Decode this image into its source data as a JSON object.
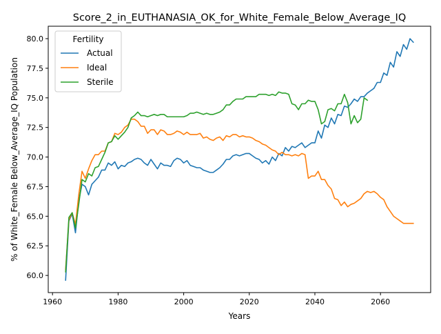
{
  "chart_data": {
    "type": "line",
    "title": "Score_2_in_EUTHANASIA_OK_for_White_Female_Below_Average_IQ",
    "xlabel": "Years",
    "ylabel": "% of White_Female Below_Average_IQ Population",
    "xlim": [
      1958.7,
      2075.3
    ],
    "ylim": [
      58.55,
      81.05
    ],
    "xticks": [
      1960,
      1980,
      2000,
      2020,
      2040,
      2060
    ],
    "xtick_labels": [
      "1960",
      "1980",
      "2000",
      "2020",
      "2040",
      "2060"
    ],
    "yticks": [
      60.0,
      62.5,
      65.0,
      67.5,
      70.0,
      72.5,
      75.0,
      77.5,
      80.0
    ],
    "ytick_labels": [
      "60.0",
      "62.5",
      "65.0",
      "67.5",
      "70.0",
      "72.5",
      "75.0",
      "77.5",
      "80.0"
    ],
    "grid": false,
    "legend": {
      "title": "Fertility",
      "location": "upper-left"
    },
    "series": [
      {
        "name": "Actual",
        "color": "#1f77b4",
        "points": [
          [
            1964,
            59.6
          ],
          [
            1965,
            64.6
          ],
          [
            1966,
            65.2
          ],
          [
            1967,
            63.6
          ],
          [
            1968,
            66.3
          ],
          [
            1969,
            67.7
          ],
          [
            1970,
            67.5
          ],
          [
            1971,
            66.8
          ],
          [
            1972,
            67.7
          ],
          [
            1973,
            68.0
          ],
          [
            1974,
            68.3
          ],
          [
            1975,
            68.9
          ],
          [
            1976,
            68.9
          ],
          [
            1977,
            69.5
          ],
          [
            1978,
            69.3
          ],
          [
            1979,
            69.6
          ],
          [
            1980,
            69.0
          ],
          [
            1981,
            69.3
          ],
          [
            1982,
            69.2
          ],
          [
            1983,
            69.5
          ],
          [
            1984,
            69.6
          ],
          [
            1985,
            69.8
          ],
          [
            1986,
            69.9
          ],
          [
            1987,
            69.8
          ],
          [
            1988,
            69.5
          ],
          [
            1989,
            69.3
          ],
          [
            1990,
            69.8
          ],
          [
            1991,
            69.4
          ],
          [
            1992,
            69.0
          ],
          [
            1993,
            69.5
          ],
          [
            1994,
            69.3
          ],
          [
            1995,
            69.3
          ],
          [
            1996,
            69.2
          ],
          [
            1997,
            69.7
          ],
          [
            1998,
            69.9
          ],
          [
            1999,
            69.8
          ],
          [
            2000,
            69.5
          ],
          [
            2001,
            69.7
          ],
          [
            2002,
            69.3
          ],
          [
            2003,
            69.2
          ],
          [
            2004,
            69.1
          ],
          [
            2005,
            69.1
          ],
          [
            2006,
            68.9
          ],
          [
            2007,
            68.8
          ],
          [
            2008,
            68.7
          ],
          [
            2009,
            68.7
          ],
          [
            2010,
            68.9
          ],
          [
            2011,
            69.1
          ],
          [
            2012,
            69.4
          ],
          [
            2013,
            69.8
          ],
          [
            2014,
            69.8
          ],
          [
            2015,
            70.1
          ],
          [
            2016,
            70.2
          ],
          [
            2017,
            70.1
          ],
          [
            2018,
            70.2
          ],
          [
            2019,
            70.3
          ],
          [
            2020,
            70.3
          ],
          [
            2021,
            70.1
          ],
          [
            2022,
            69.9
          ],
          [
            2023,
            69.8
          ],
          [
            2024,
            69.5
          ],
          [
            2025,
            69.7
          ],
          [
            2026,
            69.4
          ],
          [
            2027,
            70.0
          ],
          [
            2028,
            69.7
          ],
          [
            2029,
            70.3
          ],
          [
            2030,
            70.1
          ],
          [
            2031,
            70.8
          ],
          [
            2032,
            70.5
          ],
          [
            2033,
            70.9
          ],
          [
            2034,
            70.8
          ],
          [
            2035,
            71.0
          ],
          [
            2036,
            71.2
          ],
          [
            2037,
            70.8
          ],
          [
            2038,
            71.0
          ],
          [
            2039,
            71.2
          ],
          [
            2040,
            71.2
          ],
          [
            2041,
            72.2
          ],
          [
            2042,
            71.6
          ],
          [
            2043,
            72.7
          ],
          [
            2044,
            72.5
          ],
          [
            2045,
            73.3
          ],
          [
            2046,
            72.8
          ],
          [
            2047,
            73.6
          ],
          [
            2048,
            73.5
          ],
          [
            2049,
            74.3
          ],
          [
            2050,
            74.2
          ],
          [
            2051,
            74.5
          ],
          [
            2052,
            74.9
          ],
          [
            2053,
            74.7
          ],
          [
            2054,
            75.1
          ],
          [
            2055,
            75.1
          ],
          [
            2056,
            75.4
          ],
          [
            2057,
            75.6
          ],
          [
            2058,
            75.8
          ],
          [
            2059,
            76.3
          ],
          [
            2060,
            76.3
          ],
          [
            2061,
            77.1
          ],
          [
            2062,
            76.9
          ],
          [
            2063,
            78.0
          ],
          [
            2064,
            77.6
          ],
          [
            2065,
            78.9
          ],
          [
            2066,
            78.5
          ],
          [
            2067,
            79.5
          ],
          [
            2068,
            79.1
          ],
          [
            2069,
            80.0
          ],
          [
            2070,
            79.7
          ]
        ]
      },
      {
        "name": "Ideal",
        "color": "#ff7f0e",
        "points": [
          [
            1964,
            60.5
          ],
          [
            1965,
            64.7
          ],
          [
            1966,
            65.3
          ],
          [
            1967,
            64.3
          ],
          [
            1968,
            66.8
          ],
          [
            1969,
            68.8
          ],
          [
            1970,
            68.2
          ],
          [
            1971,
            69.0
          ],
          [
            1972,
            69.7
          ],
          [
            1973,
            70.2
          ],
          [
            1974,
            70.2
          ],
          [
            1975,
            70.5
          ],
          [
            1976,
            70.5
          ],
          [
            1977,
            71.2
          ],
          [
            1978,
            71.3
          ],
          [
            1979,
            72.0
          ],
          [
            1980,
            71.9
          ],
          [
            1981,
            72.1
          ],
          [
            1982,
            72.5
          ],
          [
            1983,
            72.7
          ],
          [
            1984,
            73.2
          ],
          [
            1985,
            73.2
          ],
          [
            1986,
            73.0
          ],
          [
            1987,
            72.6
          ],
          [
            1988,
            72.6
          ],
          [
            1989,
            72.0
          ],
          [
            1990,
            72.3
          ],
          [
            1991,
            72.3
          ],
          [
            1992,
            71.9
          ],
          [
            1993,
            72.3
          ],
          [
            1994,
            72.2
          ],
          [
            1995,
            71.9
          ],
          [
            1996,
            71.9
          ],
          [
            1997,
            72.0
          ],
          [
            1998,
            72.2
          ],
          [
            1999,
            72.1
          ],
          [
            2000,
            71.9
          ],
          [
            2001,
            72.1
          ],
          [
            2002,
            71.9
          ],
          [
            2003,
            71.9
          ],
          [
            2004,
            71.9
          ],
          [
            2005,
            72.0
          ],
          [
            2006,
            71.6
          ],
          [
            2007,
            71.7
          ],
          [
            2008,
            71.5
          ],
          [
            2009,
            71.4
          ],
          [
            2010,
            71.6
          ],
          [
            2011,
            71.7
          ],
          [
            2012,
            71.4
          ],
          [
            2013,
            71.8
          ],
          [
            2014,
            71.7
          ],
          [
            2015,
            71.9
          ],
          [
            2016,
            71.9
          ],
          [
            2017,
            71.7
          ],
          [
            2018,
            71.8
          ],
          [
            2019,
            71.7
          ],
          [
            2020,
            71.7
          ],
          [
            2021,
            71.6
          ],
          [
            2022,
            71.4
          ],
          [
            2023,
            71.3
          ],
          [
            2024,
            71.1
          ],
          [
            2025,
            71.0
          ],
          [
            2026,
            70.8
          ],
          [
            2027,
            70.6
          ],
          [
            2028,
            70.5
          ],
          [
            2029,
            70.2
          ],
          [
            2030,
            70.4
          ],
          [
            2031,
            70.2
          ],
          [
            2032,
            70.2
          ],
          [
            2033,
            70.1
          ],
          [
            2034,
            70.2
          ],
          [
            2035,
            70.1
          ],
          [
            2036,
            70.3
          ],
          [
            2037,
            70.2
          ],
          [
            2038,
            68.2
          ],
          [
            2039,
            68.4
          ],
          [
            2040,
            68.4
          ],
          [
            2041,
            68.8
          ],
          [
            2042,
            68.1
          ],
          [
            2043,
            68.1
          ],
          [
            2044,
            67.6
          ],
          [
            2045,
            67.3
          ],
          [
            2046,
            66.5
          ],
          [
            2047,
            66.4
          ],
          [
            2048,
            65.9
          ],
          [
            2049,
            66.2
          ],
          [
            2050,
            65.8
          ],
          [
            2051,
            66.0
          ],
          [
            2052,
            66.1
          ],
          [
            2053,
            66.3
          ],
          [
            2054,
            66.5
          ],
          [
            2055,
            66.9
          ],
          [
            2056,
            67.1
          ],
          [
            2057,
            67.0
          ],
          [
            2058,
            67.1
          ],
          [
            2059,
            66.9
          ],
          [
            2060,
            66.6
          ],
          [
            2061,
            66.4
          ],
          [
            2062,
            65.8
          ],
          [
            2063,
            65.4
          ],
          [
            2064,
            65.0
          ],
          [
            2065,
            64.8
          ],
          [
            2066,
            64.6
          ],
          [
            2067,
            64.4
          ],
          [
            2068,
            64.4
          ],
          [
            2069,
            64.4
          ],
          [
            2070,
            64.4
          ]
        ]
      },
      {
        "name": "Sterile",
        "color": "#2ca02c",
        "points": [
          [
            1964,
            60.3
          ],
          [
            1965,
            64.9
          ],
          [
            1966,
            65.3
          ],
          [
            1967,
            64.0
          ],
          [
            1968,
            66.0
          ],
          [
            1969,
            68.1
          ],
          [
            1970,
            67.9
          ],
          [
            1971,
            68.6
          ],
          [
            1972,
            68.4
          ],
          [
            1973,
            69.1
          ],
          [
            1974,
            69.2
          ],
          [
            1975,
            69.8
          ],
          [
            1976,
            70.4
          ],
          [
            1977,
            71.2
          ],
          [
            1978,
            71.3
          ],
          [
            1979,
            71.8
          ],
          [
            1980,
            71.5
          ],
          [
            1981,
            71.8
          ],
          [
            1982,
            72.1
          ],
          [
            1983,
            72.5
          ],
          [
            1984,
            73.3
          ],
          [
            1985,
            73.5
          ],
          [
            1986,
            73.8
          ],
          [
            1987,
            73.5
          ],
          [
            1988,
            73.5
          ],
          [
            1989,
            73.4
          ],
          [
            1990,
            73.5
          ],
          [
            1991,
            73.6
          ],
          [
            1992,
            73.5
          ],
          [
            1993,
            73.6
          ],
          [
            1994,
            73.6
          ],
          [
            1995,
            73.4
          ],
          [
            1996,
            73.4
          ],
          [
            1997,
            73.4
          ],
          [
            1998,
            73.4
          ],
          [
            1999,
            73.4
          ],
          [
            2000,
            73.4
          ],
          [
            2001,
            73.5
          ],
          [
            2002,
            73.7
          ],
          [
            2003,
            73.7
          ],
          [
            2004,
            73.8
          ],
          [
            2005,
            73.7
          ],
          [
            2006,
            73.6
          ],
          [
            2007,
            73.7
          ],
          [
            2008,
            73.6
          ],
          [
            2009,
            73.6
          ],
          [
            2010,
            73.7
          ],
          [
            2011,
            73.8
          ],
          [
            2012,
            74.0
          ],
          [
            2013,
            74.4
          ],
          [
            2014,
            74.4
          ],
          [
            2015,
            74.7
          ],
          [
            2016,
            74.9
          ],
          [
            2017,
            74.9
          ],
          [
            2018,
            74.9
          ],
          [
            2019,
            75.1
          ],
          [
            2020,
            75.1
          ],
          [
            2021,
            75.1
          ],
          [
            2022,
            75.1
          ],
          [
            2023,
            75.3
          ],
          [
            2024,
            75.3
          ],
          [
            2025,
            75.3
          ],
          [
            2026,
            75.2
          ],
          [
            2027,
            75.3
          ],
          [
            2028,
            75.2
          ],
          [
            2029,
            75.5
          ],
          [
            2030,
            75.4
          ],
          [
            2031,
            75.4
          ],
          [
            2032,
            75.3
          ],
          [
            2033,
            74.5
          ],
          [
            2034,
            74.4
          ],
          [
            2035,
            74.0
          ],
          [
            2036,
            74.5
          ],
          [
            2037,
            74.5
          ],
          [
            2038,
            74.8
          ],
          [
            2039,
            74.7
          ],
          [
            2040,
            74.7
          ],
          [
            2041,
            74.0
          ],
          [
            2042,
            72.8
          ],
          [
            2043,
            73.0
          ],
          [
            2044,
            74.0
          ],
          [
            2045,
            74.1
          ],
          [
            2046,
            73.9
          ],
          [
            2047,
            74.5
          ],
          [
            2048,
            74.5
          ],
          [
            2049,
            75.3
          ],
          [
            2050,
            74.6
          ],
          [
            2051,
            72.8
          ],
          [
            2052,
            73.5
          ],
          [
            2053,
            72.9
          ],
          [
            2054,
            73.2
          ],
          [
            2055,
            75.0
          ],
          [
            2056,
            74.8
          ]
        ]
      }
    ]
  }
}
